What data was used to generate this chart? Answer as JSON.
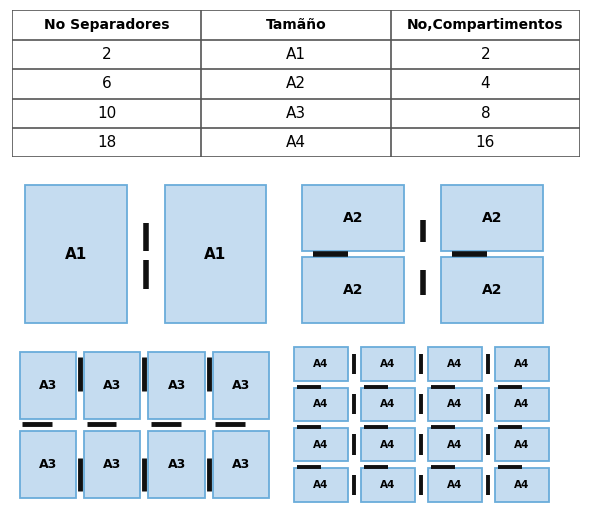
{
  "table_headers": [
    "No Separadores",
    "Tamãño",
    "No,Compartimentos"
  ],
  "table_rows": [
    [
      "2",
      "A1",
      "2"
    ],
    [
      "6",
      "A2",
      "4"
    ],
    [
      "10",
      "A3",
      "8"
    ],
    [
      "18",
      "A4",
      "16"
    ]
  ],
  "bg_color": "#BEBEBE",
  "box_color": "#C5DCF0",
  "box_edge_color": "#6AACDA",
  "separator_color": "#111111",
  "outer_border_color": "#4A86C8",
  "table_line_color": "#555555",
  "label_fontsize": 10,
  "header_fontsize": 10,
  "cell_fontsize": 11,
  "fig_bg": "#FFFFFF"
}
